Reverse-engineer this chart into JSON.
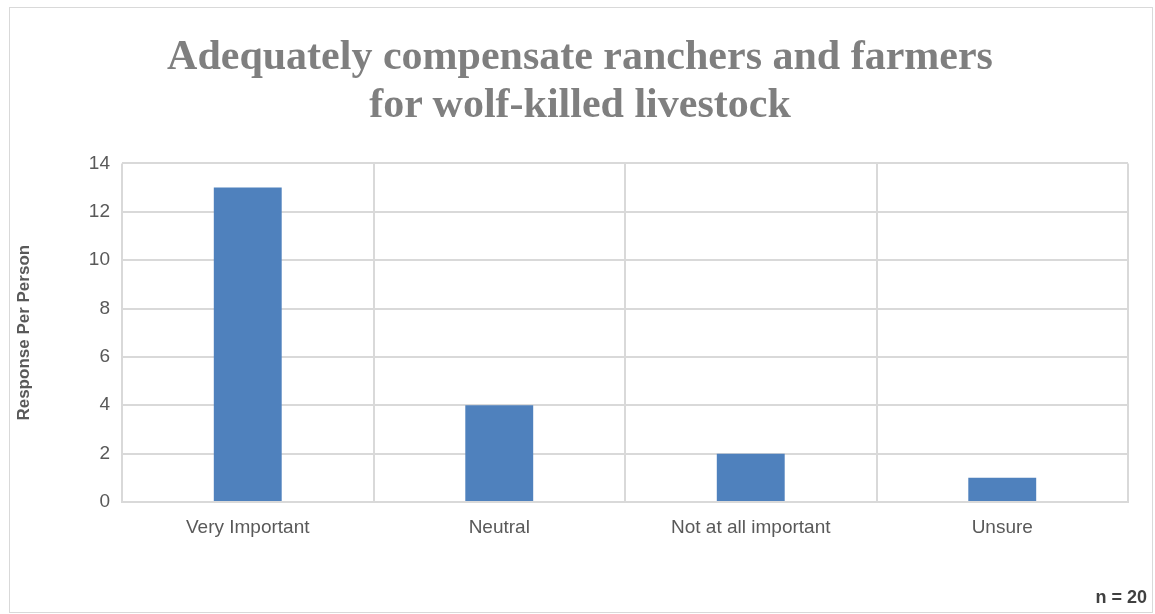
{
  "chart_data": {
    "type": "bar",
    "title": "Adequately compensate ranchers and farmers for wolf-killed livestock",
    "ylabel": "Response Per Person",
    "categories": [
      "Very Important",
      "Neutral",
      "Not at all important",
      "Unsure"
    ],
    "values": [
      13,
      4,
      2,
      1
    ],
    "color": "#4f81bd",
    "ylim": [
      0,
      14
    ],
    "yticks": [
      0,
      2,
      4,
      6,
      8,
      10,
      12,
      14
    ],
    "grid": true,
    "annotations": [
      "n = 20"
    ]
  }
}
